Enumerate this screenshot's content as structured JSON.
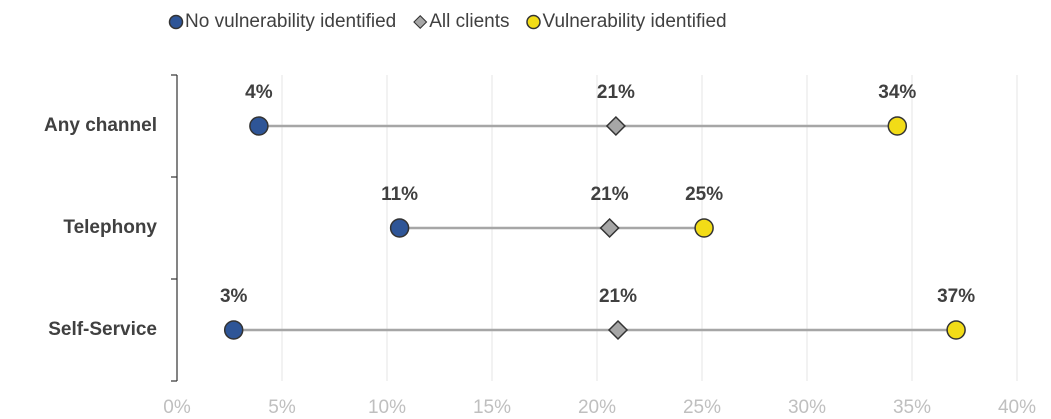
{
  "chart_data": {
    "type": "dumbbell",
    "categories": [
      "Any channel",
      "Telephony",
      "Self-Service"
    ],
    "series": [
      {
        "name": "No vulnerability identified",
        "color": "#2e5597",
        "marker": "circle",
        "values": [
          3.9,
          10.6,
          2.7
        ],
        "value_labels": [
          "4%",
          "11%",
          "3%"
        ]
      },
      {
        "name": "All clients",
        "color": "#a6a6a6",
        "marker": "diamond",
        "values": [
          20.9,
          20.6,
          21.0
        ],
        "value_labels": [
          "21%",
          "21%",
          "21%"
        ]
      },
      {
        "name": "Vulnerability identified",
        "color": "#f2dc17",
        "marker": "circle",
        "values": [
          34.3,
          25.1,
          37.1
        ],
        "value_labels": [
          "34%",
          "25%",
          "37%"
        ]
      }
    ],
    "connector_color": "#a6a6a6",
    "xlim": [
      0,
      40
    ],
    "xticks": [
      {
        "value": 0,
        "label": "0%"
      },
      {
        "value": 5,
        "label": "5%"
      },
      {
        "value": 10,
        "label": "10%"
      },
      {
        "value": 15,
        "label": "15%"
      },
      {
        "value": 20,
        "label": "20%"
      },
      {
        "value": 25,
        "label": "25%"
      },
      {
        "value": 30,
        "label": "30%"
      },
      {
        "value": 35,
        "label": "35%"
      },
      {
        "value": 40,
        "label": "40%"
      }
    ],
    "grid": true,
    "legend": "top"
  }
}
